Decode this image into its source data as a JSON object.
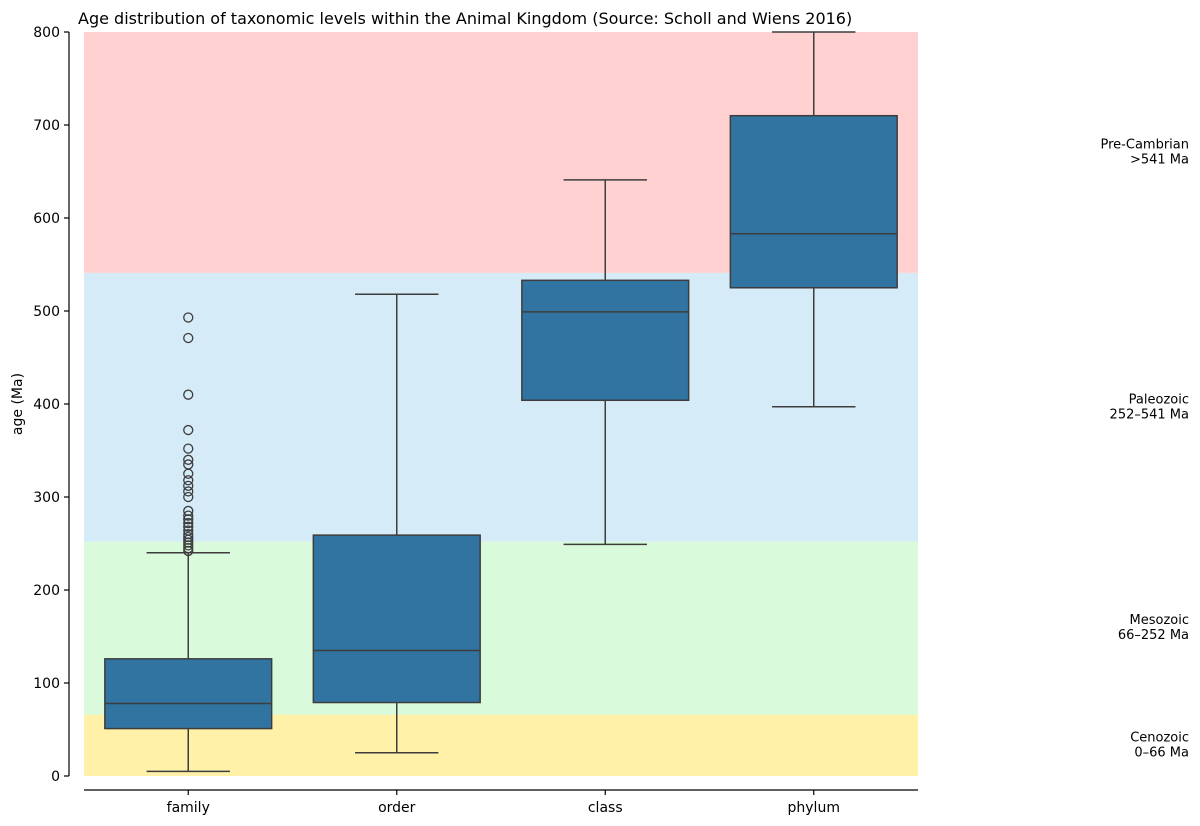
{
  "chart_data": {
    "type": "box",
    "title": "Age distribution of taxonomic levels within the Animal Kingdom (Source: Scholl and Wiens 2016)",
    "xlabel": "",
    "ylabel": "age (Ma)",
    "ylim": [
      0,
      800
    ],
    "yticks": [
      0,
      100,
      200,
      300,
      400,
      500,
      600,
      700,
      800
    ],
    "categories": [
      "family",
      "order",
      "class",
      "phylum"
    ],
    "box_color": "#3274a1",
    "boxes": [
      {
        "name": "family",
        "whisker_low": 5,
        "q1": 51,
        "median": 78,
        "q3": 126,
        "whisker_high": 240,
        "outliers": [
          242,
          245,
          248,
          251,
          254,
          257,
          260,
          264,
          268,
          272,
          276,
          280,
          285,
          300,
          306,
          312,
          318,
          325,
          335,
          340,
          352,
          372,
          410,
          471,
          493
        ]
      },
      {
        "name": "order",
        "whisker_low": 25,
        "q1": 79,
        "median": 135,
        "q3": 259,
        "whisker_high": 518,
        "outliers": []
      },
      {
        "name": "class",
        "whisker_low": 249,
        "q1": 404,
        "median": 499,
        "q3": 533,
        "whisker_high": 641,
        "outliers": []
      },
      {
        "name": "phylum",
        "whisker_low": 397,
        "q1": 525,
        "median": 583,
        "q3": 710,
        "whisker_high": 800,
        "outliers": []
      }
    ],
    "eras": [
      {
        "name": "Cenozoic",
        "range_label": "0–66 Ma",
        "from": 0,
        "to": 66,
        "color": "#fff1a8"
      },
      {
        "name": "Mesozoic",
        "range_label": "66–252 Ma",
        "from": 66,
        "to": 252,
        "color": "#dafbdb"
      },
      {
        "name": "Paleozoic",
        "range_label": "252–541 Ma",
        "from": 252,
        "to": 541,
        "color": "#d5ebf8"
      },
      {
        "name": "Pre-Cambrian",
        "range_label": ">541 Ma",
        "from": 541,
        "to": 800,
        "color": "#ffd1d1"
      }
    ]
  }
}
